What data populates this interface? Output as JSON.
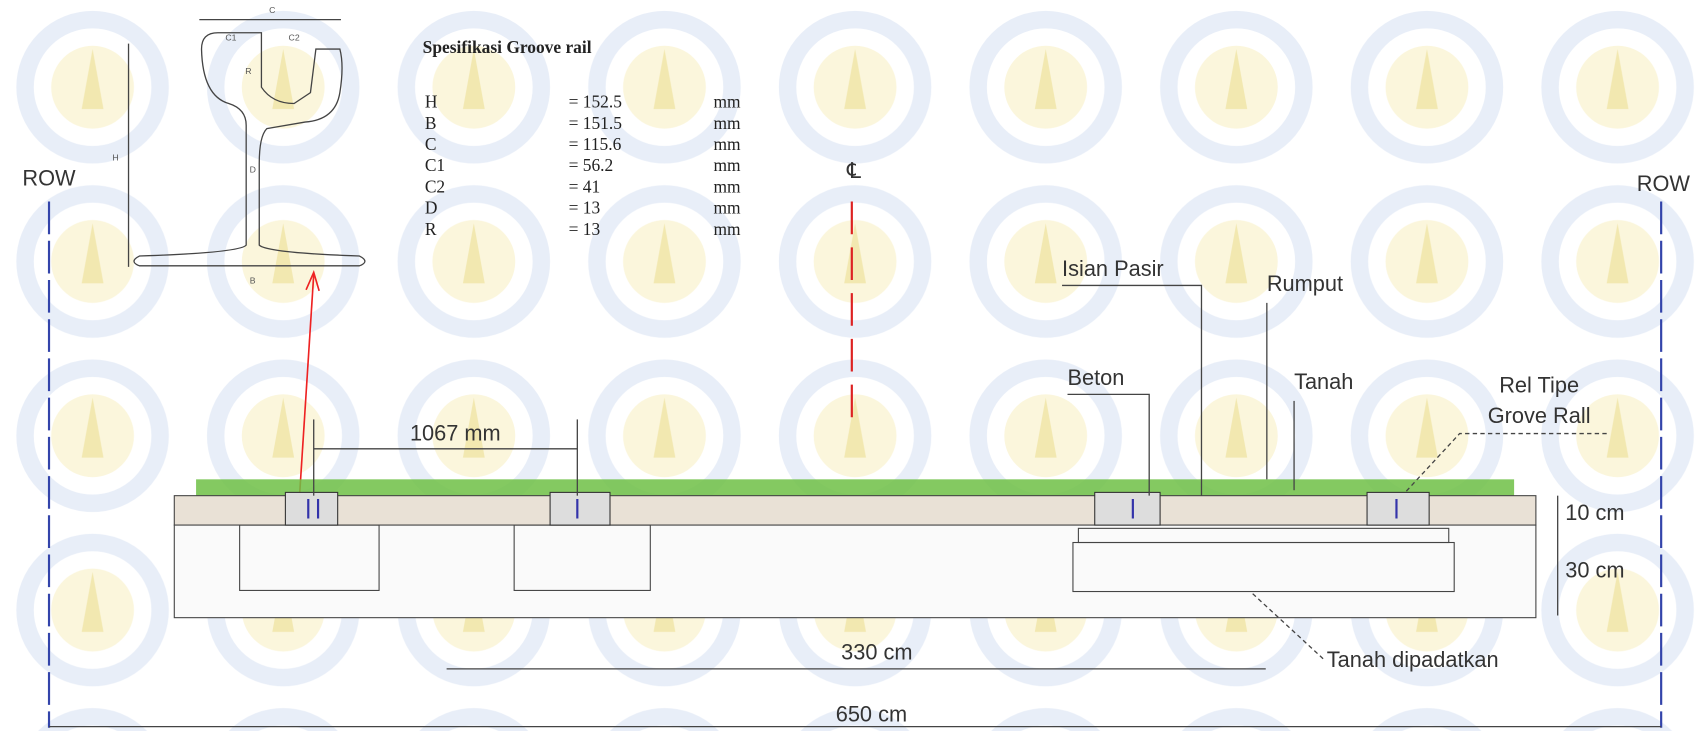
{
  "labels": {
    "row_left": "ROW",
    "row_right": "ROW",
    "centerline": "℄"
  },
  "rail_profile": {
    "labels": {
      "c": "C",
      "c1": "C1",
      "c2": "C2",
      "r": "R",
      "h": "H",
      "d": "D",
      "b": "B"
    }
  },
  "spec": {
    "title": "Spesifikasi Groove rail",
    "rows": [
      {
        "label": "H",
        "value": "= 152.5",
        "unit": "mm"
      },
      {
        "label": "B",
        "value": "= 151.5",
        "unit": "mm"
      },
      {
        "label": "C",
        "value": "= 115.6",
        "unit": "mm"
      },
      {
        "label": "C1",
        "value": "= 56.2",
        "unit": "mm"
      },
      {
        "label": "C2",
        "value": "= 41",
        "unit": "mm"
      },
      {
        "label": "D",
        "value": "= 13",
        "unit": "mm"
      },
      {
        "label": "R",
        "value": "= 13",
        "unit": "mm"
      }
    ]
  },
  "section": {
    "gauge": "1067 mm",
    "isian_pasir": "Isian Pasir",
    "rumput": "Rumput",
    "beton": "Beton",
    "tanah": "Tanah",
    "rel_tipe": [
      "Rel Tipe",
      "Grove Rall"
    ],
    "depth_top": "10 cm",
    "depth_bottom": "30 cm",
    "inner_width": "330 cm",
    "tanah_dipadatkan": "Tanah dipadatkan",
    "total_width": "650 cm"
  }
}
